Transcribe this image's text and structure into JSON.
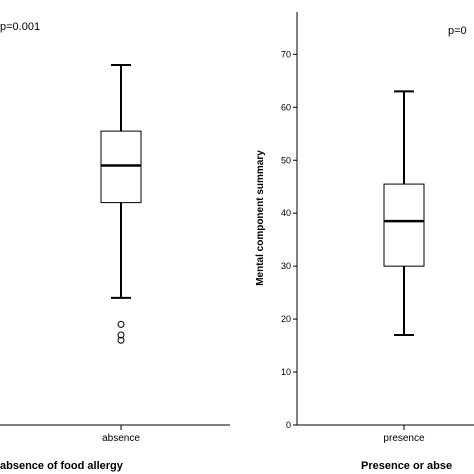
{
  "chart_data": [
    {
      "type": "boxplot",
      "panel": "left",
      "annotation": "p=0.001",
      "xlabel": "absence of food allergy",
      "ylim": [
        0,
        78
      ],
      "categories": [
        "absence"
      ],
      "boxes": [
        {
          "category": "absence",
          "whisker_low": 24,
          "q1": 42,
          "median": 49,
          "q3": 55.5,
          "whisker_high": 68,
          "outliers": [
            19,
            17,
            16
          ]
        }
      ]
    },
    {
      "type": "boxplot",
      "panel": "right",
      "annotation": "p=0",
      "xlabel": "Presence or abse",
      "ylabel": "Mental component summary",
      "ylim": [
        0,
        78
      ],
      "yticks": [
        0,
        10,
        20,
        30,
        40,
        50,
        60,
        70
      ],
      "categories": [
        "presence"
      ],
      "boxes": [
        {
          "category": "presence",
          "whisker_low": 17,
          "q1": 30,
          "median": 38.5,
          "q3": 45.5,
          "whisker_high": 63,
          "outliers": []
        }
      ]
    }
  ]
}
